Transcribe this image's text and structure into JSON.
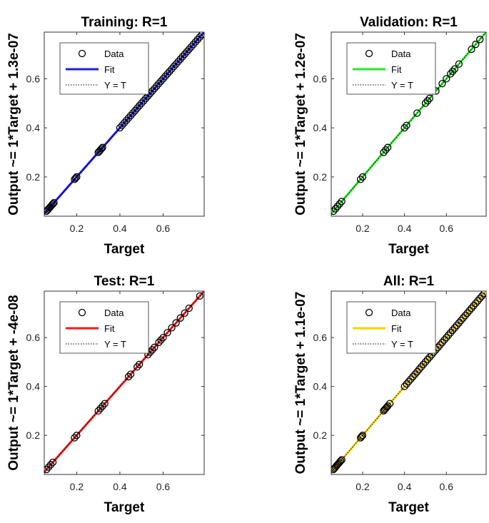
{
  "chart_data": [
    {
      "type": "scatter",
      "title": "Training: R=1",
      "xlabel": "Target",
      "ylabel": "Output ~= 1*Target + 1.3e-07",
      "xlim": [
        0.05,
        0.79
      ],
      "ylim": [
        0.04,
        0.79
      ],
      "xticks": [
        0.2,
        0.4,
        0.6
      ],
      "yticks": [
        0.2,
        0.4,
        0.6
      ],
      "fit_color": "#1a1aff",
      "legend": [
        "Data",
        "Fit",
        "Y = T"
      ],
      "legend_position": "top-left",
      "series": [
        {
          "name": "Data",
          "x": [
            0.06,
            0.065,
            0.07,
            0.075,
            0.08,
            0.085,
            0.09,
            0.095,
            0.19,
            0.195,
            0.2,
            0.3,
            0.305,
            0.31,
            0.315,
            0.32,
            0.4,
            0.41,
            0.42,
            0.43,
            0.44,
            0.45,
            0.46,
            0.47,
            0.48,
            0.49,
            0.5,
            0.51,
            0.52,
            0.53,
            0.54,
            0.55,
            0.56,
            0.57,
            0.58,
            0.59,
            0.6,
            0.61,
            0.62,
            0.63,
            0.64,
            0.65,
            0.66,
            0.67,
            0.68,
            0.69,
            0.7,
            0.71,
            0.72,
            0.73,
            0.74,
            0.75,
            0.76,
            0.77,
            0.78
          ],
          "y": [
            0.06,
            0.065,
            0.07,
            0.075,
            0.08,
            0.085,
            0.09,
            0.095,
            0.19,
            0.195,
            0.2,
            0.3,
            0.305,
            0.31,
            0.315,
            0.32,
            0.4,
            0.41,
            0.42,
            0.43,
            0.44,
            0.45,
            0.46,
            0.47,
            0.48,
            0.49,
            0.5,
            0.51,
            0.52,
            0.53,
            0.54,
            0.55,
            0.56,
            0.57,
            0.58,
            0.59,
            0.6,
            0.61,
            0.62,
            0.63,
            0.64,
            0.65,
            0.66,
            0.67,
            0.68,
            0.69,
            0.7,
            0.71,
            0.72,
            0.73,
            0.74,
            0.75,
            0.76,
            0.77,
            0.78
          ]
        },
        {
          "name": "Fit",
          "x": [
            0.05,
            0.79
          ],
          "y": [
            0.05,
            0.79
          ]
        },
        {
          "name": "Y = T",
          "x": [
            0.05,
            0.79
          ],
          "y": [
            0.05,
            0.79
          ]
        }
      ]
    },
    {
      "type": "scatter",
      "title": "Validation: R=1",
      "xlabel": "Target",
      "ylabel": "Output ~= 1*Target + 1.2e-07",
      "xlim": [
        0.05,
        0.79
      ],
      "ylim": [
        0.04,
        0.79
      ],
      "xticks": [
        0.2,
        0.4,
        0.6
      ],
      "yticks": [
        0.2,
        0.4,
        0.6
      ],
      "fit_color": "#22ee22",
      "legend": [
        "Data",
        "Fit",
        "Y = T"
      ],
      "legend_position": "top-left",
      "series": [
        {
          "name": "Data",
          "x": [
            0.06,
            0.07,
            0.08,
            0.09,
            0.1,
            0.19,
            0.2,
            0.3,
            0.31,
            0.32,
            0.4,
            0.41,
            0.46,
            0.5,
            0.51,
            0.52,
            0.55,
            0.58,
            0.6,
            0.62,
            0.63,
            0.64,
            0.66,
            0.72,
            0.74,
            0.76
          ],
          "y": [
            0.06,
            0.07,
            0.08,
            0.09,
            0.1,
            0.19,
            0.2,
            0.3,
            0.31,
            0.32,
            0.4,
            0.41,
            0.46,
            0.5,
            0.51,
            0.52,
            0.55,
            0.58,
            0.6,
            0.62,
            0.63,
            0.64,
            0.66,
            0.72,
            0.74,
            0.76
          ]
        },
        {
          "name": "Fit",
          "x": [
            0.05,
            0.79
          ],
          "y": [
            0.05,
            0.79
          ]
        },
        {
          "name": "Y = T",
          "x": [
            0.05,
            0.79
          ],
          "y": [
            0.05,
            0.79
          ]
        }
      ]
    },
    {
      "type": "scatter",
      "title": "Test: R=1",
      "xlabel": "Target",
      "ylabel": "Output ~= 1*Target + -4e-08",
      "xlim": [
        0.05,
        0.79
      ],
      "ylim": [
        0.04,
        0.79
      ],
      "xticks": [
        0.2,
        0.4,
        0.6
      ],
      "yticks": [
        0.2,
        0.4,
        0.6
      ],
      "fit_color": "#ff1a1a",
      "legend": [
        "Data",
        "Fit",
        "Y = T"
      ],
      "legend_position": "top-left",
      "series": [
        {
          "name": "Data",
          "x": [
            0.06,
            0.07,
            0.08,
            0.09,
            0.19,
            0.2,
            0.3,
            0.31,
            0.32,
            0.33,
            0.44,
            0.45,
            0.48,
            0.49,
            0.53,
            0.54,
            0.55,
            0.56,
            0.58,
            0.59,
            0.6,
            0.62,
            0.64,
            0.66,
            0.68,
            0.7,
            0.72,
            0.77
          ],
          "y": [
            0.06,
            0.07,
            0.08,
            0.09,
            0.19,
            0.2,
            0.3,
            0.31,
            0.32,
            0.33,
            0.44,
            0.45,
            0.48,
            0.49,
            0.53,
            0.54,
            0.55,
            0.56,
            0.58,
            0.59,
            0.6,
            0.62,
            0.64,
            0.66,
            0.68,
            0.7,
            0.72,
            0.77
          ]
        },
        {
          "name": "Fit",
          "x": [
            0.05,
            0.79
          ],
          "y": [
            0.05,
            0.79
          ]
        },
        {
          "name": "Y = T",
          "x": [
            0.05,
            0.79
          ],
          "y": [
            0.05,
            0.79
          ]
        }
      ]
    },
    {
      "type": "scatter",
      "title": "All: R=1",
      "xlabel": "Target",
      "ylabel": "Output ~= 1*Target + 1.1e-07",
      "xlim": [
        0.05,
        0.79
      ],
      "ylim": [
        0.04,
        0.79
      ],
      "xticks": [
        0.2,
        0.4,
        0.6
      ],
      "yticks": [
        0.2,
        0.4,
        0.6
      ],
      "fit_color": "#ffd000",
      "legend": [
        "Data",
        "Fit",
        "Y = T"
      ],
      "legend_position": "top-left",
      "series": [
        {
          "name": "Data",
          "x": [
            0.06,
            0.065,
            0.07,
            0.075,
            0.08,
            0.085,
            0.09,
            0.095,
            0.1,
            0.19,
            0.195,
            0.2,
            0.3,
            0.305,
            0.31,
            0.315,
            0.32,
            0.33,
            0.4,
            0.41,
            0.42,
            0.43,
            0.44,
            0.45,
            0.46,
            0.47,
            0.48,
            0.49,
            0.5,
            0.51,
            0.52,
            0.53,
            0.54,
            0.55,
            0.56,
            0.57,
            0.58,
            0.59,
            0.6,
            0.61,
            0.62,
            0.63,
            0.64,
            0.65,
            0.66,
            0.67,
            0.68,
            0.69,
            0.7,
            0.71,
            0.72,
            0.73,
            0.74,
            0.75,
            0.76,
            0.77,
            0.78
          ],
          "y": [
            0.06,
            0.065,
            0.07,
            0.075,
            0.08,
            0.085,
            0.09,
            0.095,
            0.1,
            0.19,
            0.195,
            0.2,
            0.3,
            0.305,
            0.31,
            0.315,
            0.32,
            0.33,
            0.4,
            0.41,
            0.42,
            0.43,
            0.44,
            0.45,
            0.46,
            0.47,
            0.48,
            0.49,
            0.5,
            0.51,
            0.52,
            0.53,
            0.54,
            0.55,
            0.56,
            0.57,
            0.58,
            0.59,
            0.6,
            0.61,
            0.62,
            0.63,
            0.64,
            0.65,
            0.66,
            0.67,
            0.68,
            0.69,
            0.7,
            0.71,
            0.72,
            0.73,
            0.74,
            0.75,
            0.76,
            0.77,
            0.78
          ]
        },
        {
          "name": "Fit",
          "x": [
            0.05,
            0.79
          ],
          "y": [
            0.05,
            0.79
          ]
        },
        {
          "name": "Y = T",
          "x": [
            0.05,
            0.79
          ],
          "y": [
            0.05,
            0.79
          ]
        }
      ]
    }
  ]
}
